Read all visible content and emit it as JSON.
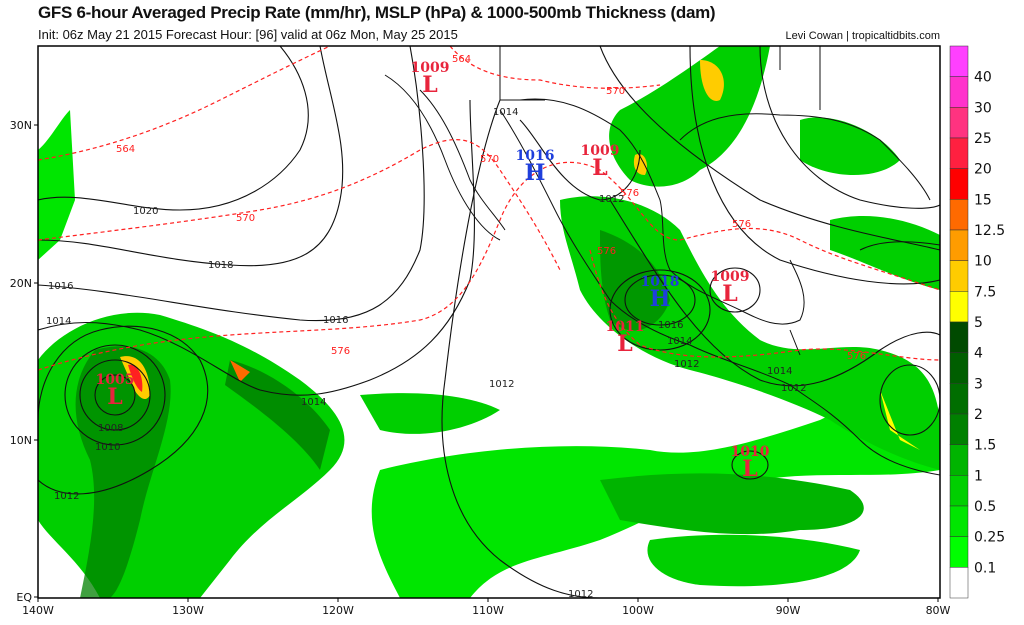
{
  "header": {
    "title": "GFS 6-hour Averaged Precip Rate (mm/hr), MSLP (hPa) & 1000-500mb Thickness (dam)",
    "subtitle": "Init: 06z May 21 2015   Forecast Hour: [96]   valid at 06z Mon, May 25 2015",
    "credit": "Levi Cowan | tropicaltidbits.com"
  },
  "map": {
    "lon_labels": [
      "140W",
      "130W",
      "120W",
      "110W",
      "100W",
      "90W",
      "80W"
    ],
    "lat_labels": [
      "30N",
      "20N",
      "10N",
      "EQ"
    ],
    "pressure_centers": [
      {
        "value": "1009",
        "type": "L"
      },
      {
        "value": "1016",
        "type": "H"
      },
      {
        "value": "1009",
        "type": "L"
      },
      {
        "value": "1018",
        "type": "H"
      },
      {
        "value": "1009",
        "type": "L"
      },
      {
        "value": "1011",
        "type": "L"
      },
      {
        "value": "1005",
        "type": "L"
      },
      {
        "value": "1010",
        "type": "L"
      }
    ],
    "isobar_labels": [
      "1014",
      "1012",
      "1020",
      "1018",
      "1016",
      "1016",
      "1014",
      "1016",
      "1014",
      "1012",
      "1014",
      "1012",
      "1012",
      "1014",
      "1008",
      "1010",
      "1012",
      "1012"
    ],
    "thickness_labels": [
      "564",
      "570",
      "564",
      "570",
      "576",
      "570",
      "576",
      "576",
      "576",
      "576"
    ],
    "colors": {
      "low": "#e8243c",
      "high": "#1f3fdc",
      "isobar": "#111111",
      "thickness": "#ff2020"
    }
  },
  "colorbar": {
    "labels": [
      "40",
      "30",
      "25",
      "20",
      "15",
      "12.5",
      "10",
      "7.5",
      "5",
      "4",
      "3",
      "2",
      "1.5",
      "1",
      "0.5",
      "0.25",
      "0.1"
    ],
    "colors": [
      "#ff40ff",
      "#ff33cc",
      "#ff3380",
      "#ff2040",
      "#ff0000",
      "#ff6a00",
      "#ff9c00",
      "#ffcc00",
      "#ffff00",
      "#004a00",
      "#005e00",
      "#006e00",
      "#008000",
      "#00b400",
      "#00cf00",
      "#00e600",
      "#00ff00",
      "#ffffff"
    ]
  }
}
